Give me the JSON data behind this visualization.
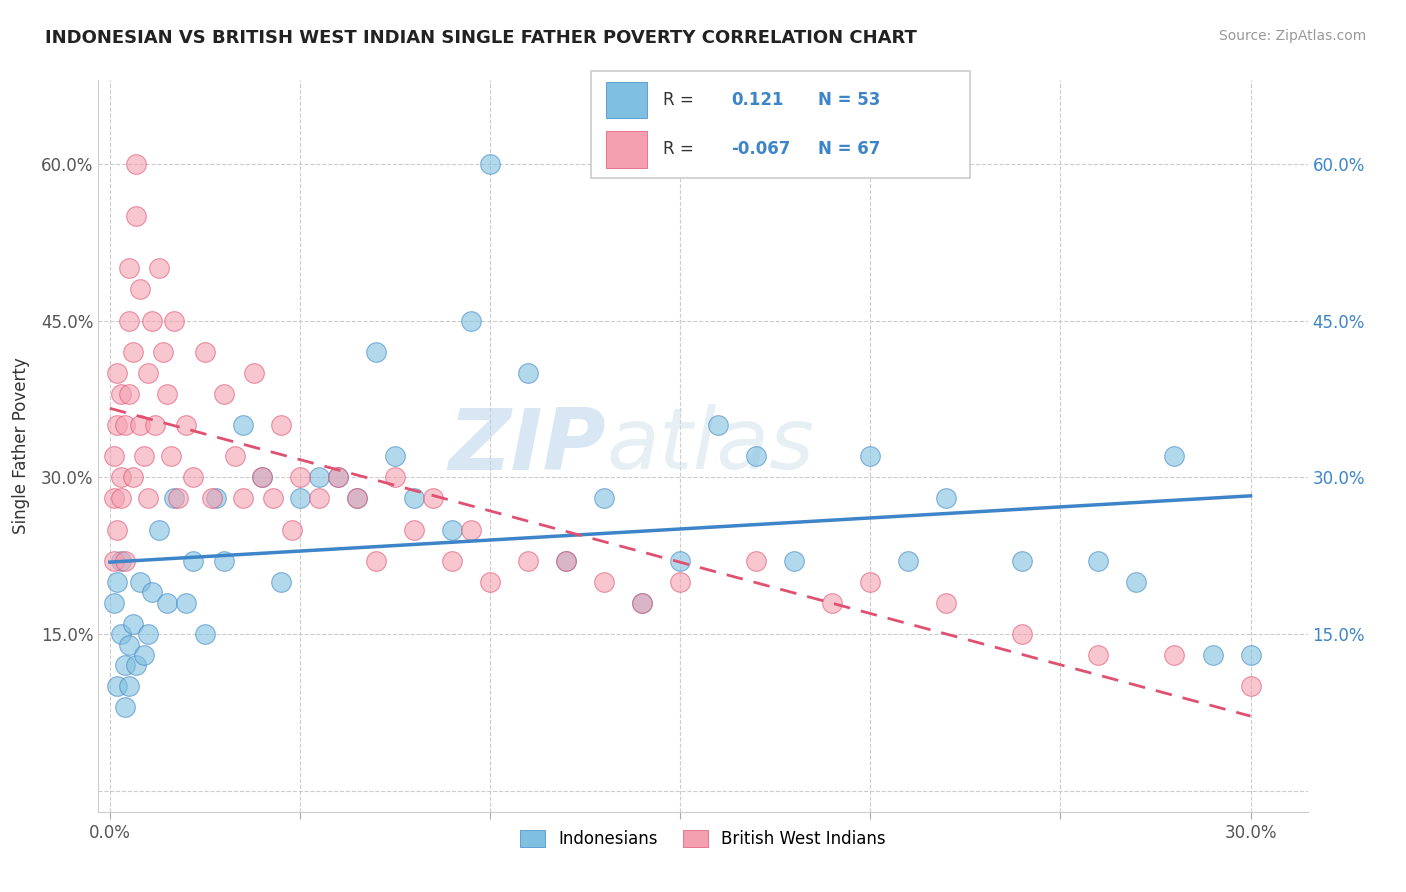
{
  "title": "INDONESIAN VS BRITISH WEST INDIAN SINGLE FATHER POVERTY CORRELATION CHART",
  "source": "Source: ZipAtlas.com",
  "ylabel": "Single Father Poverty",
  "x_ticks": [
    0.0,
    0.05,
    0.1,
    0.15,
    0.2,
    0.25,
    0.3
  ],
  "y_ticks": [
    0.0,
    0.15,
    0.3,
    0.45,
    0.6
  ],
  "xlim": [
    -0.003,
    0.315
  ],
  "ylim": [
    -0.02,
    0.68
  ],
  "legend_indonesians": "Indonesians",
  "legend_bwi": "British West Indians",
  "r_indonesians": 0.121,
  "n_indonesians": 53,
  "r_bwi": -0.067,
  "n_bwi": 67,
  "blue_color": "#7fbfdf",
  "blue_line_color": "#3d85c8",
  "pink_color": "#f4a0b0",
  "pink_line_color": "#e05070",
  "watermark_zip": "ZIP",
  "watermark_atlas": "atlas",
  "background_color": "#ffffff",
  "grid_color": "#cccccc",
  "indo_x": [
    0.001,
    0.002,
    0.002,
    0.003,
    0.003,
    0.004,
    0.004,
    0.005,
    0.005,
    0.006,
    0.007,
    0.008,
    0.009,
    0.01,
    0.011,
    0.013,
    0.015,
    0.017,
    0.02,
    0.022,
    0.025,
    0.028,
    0.03,
    0.035,
    0.04,
    0.045,
    0.05,
    0.055,
    0.06,
    0.065,
    0.07,
    0.075,
    0.08,
    0.09,
    0.095,
    0.1,
    0.11,
    0.12,
    0.13,
    0.14,
    0.15,
    0.16,
    0.17,
    0.18,
    0.2,
    0.21,
    0.22,
    0.24,
    0.26,
    0.27,
    0.28,
    0.29,
    0.3
  ],
  "indo_y": [
    0.18,
    0.2,
    0.1,
    0.15,
    0.22,
    0.12,
    0.08,
    0.14,
    0.1,
    0.16,
    0.12,
    0.2,
    0.13,
    0.15,
    0.19,
    0.25,
    0.18,
    0.28,
    0.18,
    0.22,
    0.15,
    0.28,
    0.22,
    0.35,
    0.3,
    0.2,
    0.28,
    0.3,
    0.3,
    0.28,
    0.42,
    0.32,
    0.28,
    0.25,
    0.45,
    0.6,
    0.4,
    0.22,
    0.28,
    0.18,
    0.22,
    0.35,
    0.32,
    0.22,
    0.32,
    0.22,
    0.28,
    0.22,
    0.22,
    0.2,
    0.32,
    0.13,
    0.13
  ],
  "bwi_x": [
    0.001,
    0.001,
    0.001,
    0.002,
    0.002,
    0.002,
    0.003,
    0.003,
    0.003,
    0.004,
    0.004,
    0.005,
    0.005,
    0.005,
    0.006,
    0.006,
    0.007,
    0.007,
    0.008,
    0.008,
    0.009,
    0.01,
    0.01,
    0.011,
    0.012,
    0.013,
    0.014,
    0.015,
    0.016,
    0.017,
    0.018,
    0.02,
    0.022,
    0.025,
    0.027,
    0.03,
    0.033,
    0.035,
    0.038,
    0.04,
    0.043,
    0.045,
    0.048,
    0.05,
    0.055,
    0.06,
    0.065,
    0.07,
    0.075,
    0.08,
    0.085,
    0.09,
    0.095,
    0.1,
    0.11,
    0.12,
    0.13,
    0.14,
    0.15,
    0.17,
    0.19,
    0.2,
    0.22,
    0.24,
    0.26,
    0.28,
    0.3
  ],
  "bwi_y": [
    0.22,
    0.28,
    0.32,
    0.25,
    0.35,
    0.4,
    0.28,
    0.38,
    0.3,
    0.22,
    0.35,
    0.5,
    0.45,
    0.38,
    0.3,
    0.42,
    0.55,
    0.6,
    0.35,
    0.48,
    0.32,
    0.4,
    0.28,
    0.45,
    0.35,
    0.5,
    0.42,
    0.38,
    0.32,
    0.45,
    0.28,
    0.35,
    0.3,
    0.42,
    0.28,
    0.38,
    0.32,
    0.28,
    0.4,
    0.3,
    0.28,
    0.35,
    0.25,
    0.3,
    0.28,
    0.3,
    0.28,
    0.22,
    0.3,
    0.25,
    0.28,
    0.22,
    0.25,
    0.2,
    0.22,
    0.22,
    0.2,
    0.18,
    0.2,
    0.22,
    0.18,
    0.2,
    0.18,
    0.15,
    0.13,
    0.13,
    0.1
  ]
}
